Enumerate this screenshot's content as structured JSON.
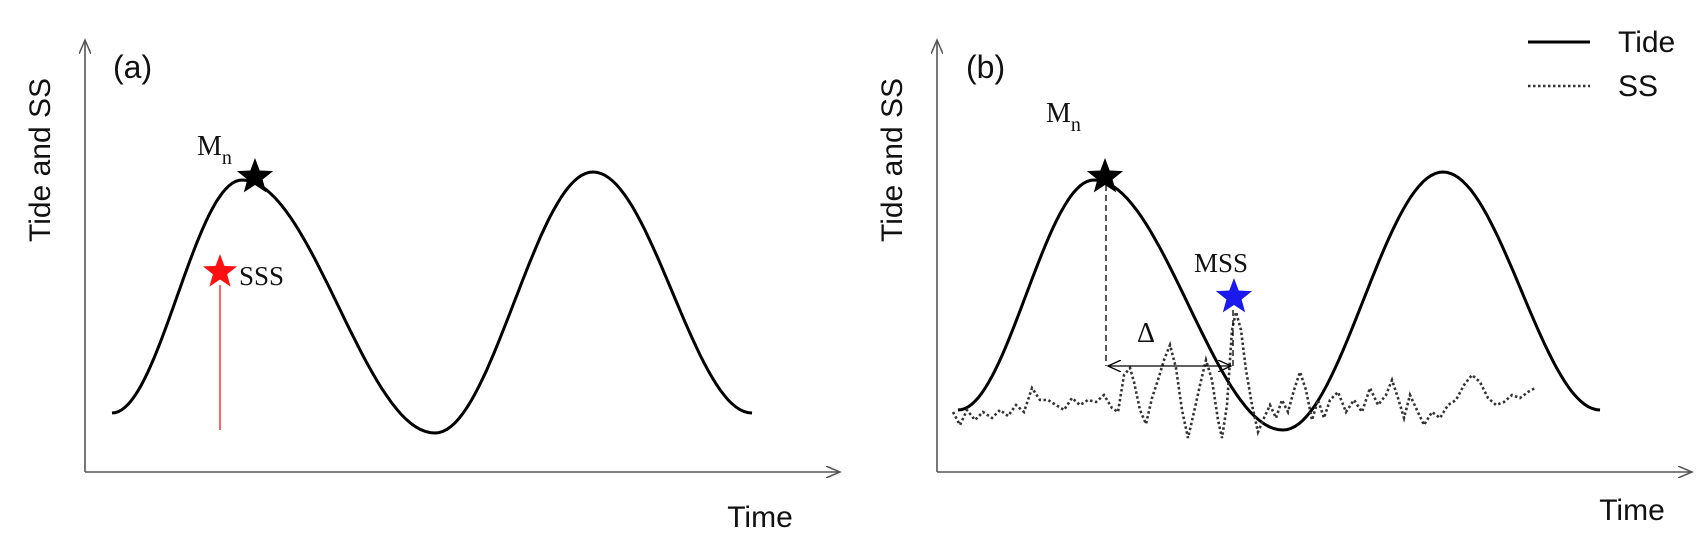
{
  "colors": {
    "axis": "#555555",
    "tide": "#000000",
    "ss": "#333333",
    "sss_star": "#ff1010",
    "sss_line": "#ff4040",
    "mss_star": "#1a1aee",
    "mn_star": "#000000"
  },
  "legend": {
    "tide_label": "Tide",
    "ss_label": "SS"
  },
  "panel_a": {
    "panel_label": "(a)",
    "ylabel": "Tide and SS",
    "xlabel": "Time",
    "mn_main": "M",
    "mn_sub": "n",
    "sss_label": "SSS"
  },
  "panel_b": {
    "panel_label": "(b)",
    "ylabel": "Tide and SS",
    "xlabel": "Time",
    "mn_main": "M",
    "mn_sub": "n",
    "mss_label": "MSS",
    "delta_label": "Δ"
  }
}
